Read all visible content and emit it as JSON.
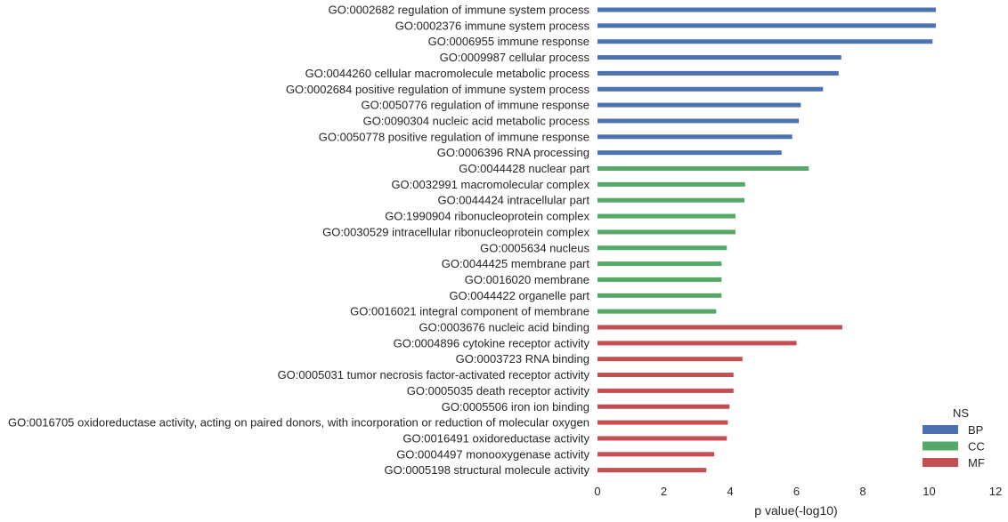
{
  "chart_data": {
    "type": "bar",
    "orientation": "horizontal",
    "title": "",
    "xlabel": "p value(-log10)",
    "ylabel": "",
    "xlim": [
      0,
      12
    ],
    "xticks": [
      0,
      2,
      4,
      6,
      8,
      10,
      12
    ],
    "xtick_labels": [
      "0",
      "2",
      "4",
      "6",
      "8",
      "10",
      "12"
    ],
    "grid": false,
    "legend": {
      "title": "NS",
      "placement": "bottom-right",
      "entries": [
        {
          "name": "BP",
          "color": "#4C72B0"
        },
        {
          "name": "CC",
          "color": "#55A868"
        },
        {
          "name": "MF",
          "color": "#C44E52"
        }
      ]
    },
    "bars": [
      {
        "label": "GO:0002682 regulation of immune system process",
        "value": 10.2,
        "ns": "BP"
      },
      {
        "label": "GO:0002376 immune system process",
        "value": 10.2,
        "ns": "BP"
      },
      {
        "label": "GO:0006955 immune response",
        "value": 10.1,
        "ns": "BP"
      },
      {
        "label": "GO:0009987 cellular process",
        "value": 7.35,
        "ns": "BP"
      },
      {
        "label": "GO:0044260 cellular macromolecule metabolic process",
        "value": 7.27,
        "ns": "BP"
      },
      {
        "label": "GO:0002684 positive regulation of immune system process",
        "value": 6.8,
        "ns": "BP"
      },
      {
        "label": "GO:0050776 regulation of immune response",
        "value": 6.13,
        "ns": "BP"
      },
      {
        "label": "GO:0090304 nucleic acid metabolic process",
        "value": 6.07,
        "ns": "BP"
      },
      {
        "label": "GO:0050778 positive regulation of immune response",
        "value": 5.87,
        "ns": "BP"
      },
      {
        "label": "GO:0006396 RNA processing",
        "value": 5.55,
        "ns": "BP"
      },
      {
        "label": "GO:0044428 nuclear part",
        "value": 6.37,
        "ns": "CC"
      },
      {
        "label": "GO:0032991 macromolecular complex",
        "value": 4.45,
        "ns": "CC"
      },
      {
        "label": "GO:0044424 intracellular part",
        "value": 4.43,
        "ns": "CC"
      },
      {
        "label": "GO:1990904 ribonucleoprotein complex",
        "value": 4.16,
        "ns": "CC"
      },
      {
        "label": "GO:0030529 intracellular ribonucleoprotein complex",
        "value": 4.16,
        "ns": "CC"
      },
      {
        "label": "GO:0005634 nucleus",
        "value": 3.9,
        "ns": "CC"
      },
      {
        "label": "GO:0044425 membrane part",
        "value": 3.74,
        "ns": "CC"
      },
      {
        "label": "GO:0016020 membrane",
        "value": 3.74,
        "ns": "CC"
      },
      {
        "label": "GO:0044422 organelle part",
        "value": 3.74,
        "ns": "CC"
      },
      {
        "label": "GO:0016021 integral component of membrane",
        "value": 3.58,
        "ns": "CC"
      },
      {
        "label": "GO:0003676 nucleic acid binding",
        "value": 7.38,
        "ns": "MF"
      },
      {
        "label": "GO:0004896 cytokine receptor activity",
        "value": 6.0,
        "ns": "MF"
      },
      {
        "label": "GO:0003723 RNA binding",
        "value": 4.37,
        "ns": "MF"
      },
      {
        "label": "GO:0005031 tumor necrosis factor-activated receptor activity",
        "value": 4.1,
        "ns": "MF"
      },
      {
        "label": "GO:0005035 death receptor activity",
        "value": 4.1,
        "ns": "MF"
      },
      {
        "label": "GO:0005506 iron ion binding",
        "value": 3.98,
        "ns": "MF"
      },
      {
        "label": "GO:0016705 oxidoreductase activity, acting on paired donors, with incorporation or reduction of molecular oxygen",
        "value": 3.93,
        "ns": "MF"
      },
      {
        "label": "GO:0016491 oxidoreductase activity",
        "value": 3.9,
        "ns": "MF"
      },
      {
        "label": "GO:0004497 monooxygenase activity",
        "value": 3.52,
        "ns": "MF"
      },
      {
        "label": "GO:0005198 structural molecule activity",
        "value": 3.28,
        "ns": "MF"
      }
    ]
  }
}
